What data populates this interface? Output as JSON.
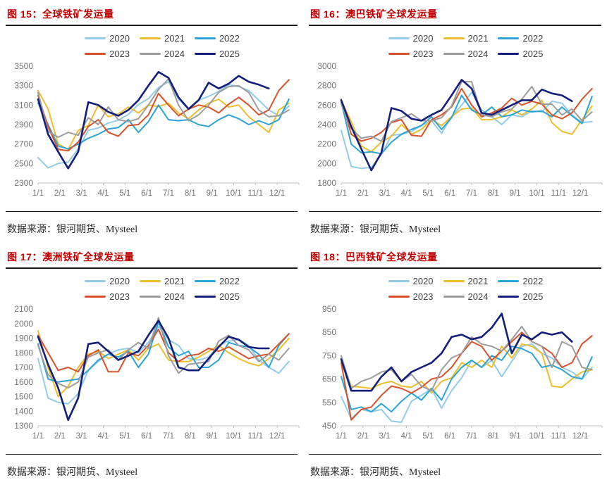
{
  "theme": {
    "title_color": "#C00000",
    "axis_label_color": "#737373",
    "axis_line_color": "#BFBFBF",
    "legend_text_color": "#404040",
    "rule_color": "#1a1a1a"
  },
  "series_colors": {
    "2020": "#92CCEA",
    "2021": "#EDBE2C",
    "2022": "#2BA3D4",
    "2023": "#D8522B",
    "2024": "#9C9C9C",
    "2025": "#131F7B"
  },
  "charts": [
    {
      "title": "图 15：全球铁矿发运量",
      "source": "数据来源：银河期货、Mysteel",
      "chart_data": {
        "type": "line",
        "title": "全球铁矿发运量",
        "x_labels": [
          "1/1",
          "2/1",
          "3/1",
          "4/1",
          "5/1",
          "6/1",
          "7/1",
          "8/1",
          "9/1",
          "10/1",
          "11/1",
          "12/1"
        ],
        "x_unit": "week of year, values sampled biweekly from week 0",
        "x_step_weeks": 2,
        "ylim": [
          2300,
          3500
        ],
        "yticks": [
          2300,
          2500,
          2700,
          2900,
          3100,
          3300,
          3500
        ],
        "grid": false,
        "legend_position": "top",
        "series": [
          {
            "name": "2020",
            "color": "#92CCEA",
            "values": [
              2560,
              2455,
              2500,
              2515,
              2650,
              2840,
              2865,
              2915,
              2945,
              3005,
              3105,
              3165,
              3280,
              3340,
              3160,
              3060,
              3150,
              3190,
              3240,
              3310,
              3290,
              3250,
              3150,
              3050,
              2990,
              3090
            ]
          },
          {
            "name": "2021",
            "color": "#EDBE2C",
            "values": [
              3250,
              3060,
              2700,
              2645,
              2840,
              2890,
              3100,
              2980,
              3010,
              3080,
              3020,
              3100,
              3085,
              3120,
              3020,
              2960,
              3050,
              3120,
              3160,
              3080,
              3100,
              2980,
              2900,
              2820,
              3050,
              3120
            ]
          },
          {
            "name": "2022",
            "color": "#2BA3D4",
            "values": [
              3120,
              2900,
              2680,
              2650,
              2700,
              2760,
              2800,
              2855,
              2870,
              2950,
              2820,
              2930,
              3100,
              2950,
              2940,
              2950,
              2900,
              2880,
              2950,
              3000,
              2960,
              2900,
              2940,
              2900,
              2950,
              3160
            ]
          },
          {
            "name": "2023",
            "color": "#D8522B",
            "values": [
              3200,
              2880,
              2645,
              2630,
              2720,
              2880,
              2950,
              2820,
              2780,
              2890,
              2900,
              3000,
              3220,
              3100,
              2990,
              3060,
              3100,
              3080,
              3020,
              3110,
              3180,
              3100,
              3000,
              3050,
              3250,
              3360
            ]
          },
          {
            "name": "2024",
            "color": "#9C9C9C",
            "values": [
              3230,
              2830,
              2770,
              2820,
              2790,
              2970,
              2900,
              3080,
              2950,
              2930,
              2960,
              3100,
              3260,
              3370,
              3100,
              2940,
              3000,
              3100,
              3230,
              3290,
              3300,
              3230,
              3050,
              2980,
              2990,
              3050
            ]
          },
          {
            "name": "2025",
            "color": "#131F7B",
            "values": [
              3160,
              2800,
              2620,
              2450,
              2620,
              3130,
              3100,
              3030,
              2990,
              3050,
              3150,
              3300,
              3440,
              3380,
              3180,
              3060,
              3150,
              3330,
              3270,
              3320,
              3400,
              3340,
              3310,
              3270
            ]
          }
        ]
      }
    },
    {
      "title": "图 16：澳巴铁矿全球发运量",
      "source": "数据来源：银河期货、Mysteel",
      "chart_data": {
        "type": "line",
        "title": "澳巴铁矿全球发运量",
        "x_labels": [
          "1/1",
          "2/1",
          "3/1",
          "4/1",
          "5/1",
          "6/1",
          "7/1",
          "8/1",
          "9/1",
          "10/1",
          "11/1",
          "12/1"
        ],
        "x_unit": "week of year, values sampled biweekly from week 0",
        "x_step_weeks": 2,
        "ylim": [
          1800,
          3000
        ],
        "yticks": [
          1800,
          2000,
          2200,
          2400,
          2600,
          2800,
          3000
        ],
        "grid": false,
        "legend_position": "top",
        "series": [
          {
            "name": "2020",
            "color": "#92CCEA",
            "values": [
              2340,
              1970,
              1950,
              1960,
              2090,
              2290,
              2300,
              2330,
              2390,
              2440,
              2310,
              2480,
              2600,
              2730,
              2550,
              2480,
              2400,
              2500,
              2480,
              2540,
              2530,
              2640,
              2620,
              2500,
              2420,
              2430
            ]
          },
          {
            "name": "2021",
            "color": "#EDBE2C",
            "values": [
              2650,
              2430,
              2180,
              2120,
              2220,
              2280,
              2400,
              2300,
              2350,
              2450,
              2390,
              2480,
              2560,
              2570,
              2450,
              2450,
              2480,
              2550,
              2500,
              2560,
              2650,
              2420,
              2330,
              2300,
              2450,
              2590
            ]
          },
          {
            "name": "2022",
            "color": "#2BA3D4",
            "values": [
              2630,
              2200,
              2110,
              2120,
              2100,
              2220,
              2300,
              2350,
              2390,
              2480,
              2350,
              2470,
              2700,
              2550,
              2500,
              2580,
              2480,
              2500,
              2550,
              2530,
              2540,
              2480,
              2580,
              2490,
              2410,
              2690
            ]
          },
          {
            "name": "2023",
            "color": "#D8522B",
            "values": [
              2660,
              2300,
              2230,
              2260,
              2320,
              2420,
              2450,
              2290,
              2280,
              2450,
              2500,
              2580,
              2770,
              2600,
              2480,
              2520,
              2570,
              2670,
              2600,
              2640,
              2610,
              2500,
              2460,
              2520,
              2660,
              2770
            ]
          },
          {
            "name": "2024",
            "color": "#9C9C9C",
            "values": [
              2610,
              2360,
              2260,
              2280,
              2230,
              2430,
              2470,
              2510,
              2440,
              2440,
              2470,
              2590,
              2840,
              2840,
              2500,
              2480,
              2530,
              2560,
              2660,
              2790,
              2610,
              2610,
              2500,
              2560,
              2440,
              2530
            ]
          },
          {
            "name": "2025",
            "color": "#131F7B",
            "values": [
              2650,
              2380,
              2150,
              1930,
              2110,
              2570,
              2540,
              2460,
              2440,
              2500,
              2550,
              2700,
              2860,
              2770,
              2520,
              2500,
              2550,
              2600,
              2650,
              2650,
              2760,
              2720,
              2700,
              2640
            ]
          }
        ]
      }
    },
    {
      "title": "图 17：澳洲铁矿全球发运量",
      "source": "数据来源：银河期货、Mysteel",
      "chart_data": {
        "type": "line",
        "title": "澳洲铁矿全球发运量",
        "x_labels": [
          "1/1",
          "2/1",
          "3/1",
          "4/1",
          "5/1",
          "6/1",
          "7/1",
          "8/1",
          "9/1",
          "10/1",
          "11/1",
          "12/1"
        ],
        "x_unit": "week of year, values sampled biweekly from week 0",
        "x_step_weeks": 2,
        "ylim": [
          1300,
          2100
        ],
        "yticks": [
          1300,
          1400,
          1500,
          1600,
          1700,
          1800,
          1900,
          2000,
          2100
        ],
        "grid": false,
        "legend_position": "top",
        "series": [
          {
            "name": "2020",
            "color": "#92CCEA",
            "values": [
              1760,
              1490,
              1460,
              1450,
              1520,
              1680,
              1740,
              1790,
              1820,
              1830,
              1800,
              1870,
              1980,
              1890,
              1850,
              1760,
              1750,
              1770,
              1850,
              1880,
              1890,
              1850,
              1750,
              1700,
              1660,
              1740
            ]
          },
          {
            "name": "2021",
            "color": "#EDBE2C",
            "values": [
              1950,
              1700,
              1500,
              1570,
              1700,
              1790,
              1810,
              1760,
              1790,
              1820,
              1750,
              1830,
              1860,
              1750,
              1740,
              1740,
              1770,
              1810,
              1850,
              1800,
              1760,
              1730,
              1710,
              1760,
              1820,
              1900
            ]
          },
          {
            "name": "2022",
            "color": "#2BA3D4",
            "values": [
              1860,
              1620,
              1600,
              1610,
              1620,
              1680,
              1750,
              1790,
              1770,
              1810,
              1700,
              1790,
              2010,
              1840,
              1780,
              1810,
              1700,
              1700,
              1750,
              1870,
              1850,
              1840,
              1790,
              1700,
              1850,
              1930
            ]
          },
          {
            "name": "2023",
            "color": "#D8522B",
            "values": [
              1920,
              1800,
              1680,
              1700,
              1670,
              1780,
              1820,
              1670,
              1670,
              1800,
              1780,
              1850,
              1960,
              1800,
              1740,
              1780,
              1790,
              1830,
              1810,
              1840,
              1800,
              1760,
              1780,
              1790,
              1860,
              1930
            ]
          },
          {
            "name": "2024",
            "color": "#9C9C9C",
            "values": [
              1850,
              1650,
              1590,
              1560,
              1600,
              1770,
              1800,
              1820,
              1750,
              1820,
              1870,
              1830,
              2040,
              1780,
              1660,
              1720,
              1730,
              1740,
              1880,
              1920,
              1850,
              1820,
              1740,
              1790,
              1750,
              1830
            ]
          },
          {
            "name": "2025",
            "color": "#131F7B",
            "values": [
              1910,
              1720,
              1560,
              1340,
              1490,
              1860,
              1870,
              1810,
              1750,
              1780,
              1810,
              1920,
              2020,
              1900,
              1700,
              1680,
              1680,
              1760,
              1840,
              1910,
              1890,
              1840,
              1830,
              1830
            ]
          }
        ]
      }
    },
    {
      "title": "图 18：巴西铁矿全球发运量",
      "source": "数据来源：银河期货、Mysteel",
      "chart_data": {
        "type": "line",
        "title": "巴西铁矿全球发运量",
        "x_labels": [
          "1/1",
          "2/1",
          "3/1",
          "4/1",
          "5/1",
          "6/1",
          "7/1",
          "8/1",
          "9/1",
          "10/1",
          "11/1",
          "12/1"
        ],
        "x_unit": "week of year, values sampled biweekly from week 0",
        "x_step_weeks": 2,
        "ylim": [
          450,
          950
        ],
        "yticks": [
          450,
          550,
          650,
          750,
          850,
          950
        ],
        "grid": false,
        "legend_position": "top",
        "series": [
          {
            "name": "2020",
            "color": "#92CCEA",
            "values": [
              575,
              480,
              520,
              510,
              520,
              470,
              465,
              555,
              580,
              610,
              525,
              600,
              655,
              730,
              700,
              730,
              660,
              725,
              790,
              800,
              760,
              740,
              700,
              680,
              650,
              700
            ]
          },
          {
            "name": "2021",
            "color": "#EDBE2C",
            "values": [
              740,
              620,
              615,
              610,
              630,
              640,
              620,
              615,
              640,
              590,
              640,
              655,
              720,
              700,
              730,
              700,
              790,
              740,
              800,
              790,
              760,
              620,
              615,
              650,
              680,
              690
            ]
          },
          {
            "name": "2022",
            "color": "#2BA3D4",
            "values": [
              660,
              520,
              530,
              510,
              545,
              510,
              555,
              590,
              560,
              610,
              560,
              650,
              700,
              730,
              700,
              750,
              730,
              790,
              780,
              760,
              700,
              710,
              690,
              660,
              650,
              745
            ]
          },
          {
            "name": "2023",
            "color": "#D8522B",
            "values": [
              720,
              475,
              520,
              530,
              580,
              620,
              610,
              590,
              615,
              650,
              660,
              700,
              760,
              810,
              790,
              730,
              770,
              810,
              850,
              810,
              790,
              760,
              700,
              720,
              800,
              835
            ]
          },
          {
            "name": "2024",
            "color": "#9C9C9C",
            "values": [
              750,
              610,
              640,
              655,
              680,
              690,
              640,
              670,
              620,
              600,
              690,
              740,
              760,
              830,
              800,
              790,
              770,
              820,
              875,
              810,
              790,
              700,
              810,
              790,
              700,
              690
            ]
          },
          {
            "name": "2025",
            "color": "#131F7B",
            "values": [
              735,
              600,
              600,
              600,
              660,
              700,
              640,
              680,
              700,
              720,
              760,
              830,
              840,
              820,
              830,
              870,
              930,
              760,
              840,
              820,
              850,
              840,
              850,
              810
            ]
          }
        ]
      }
    }
  ]
}
